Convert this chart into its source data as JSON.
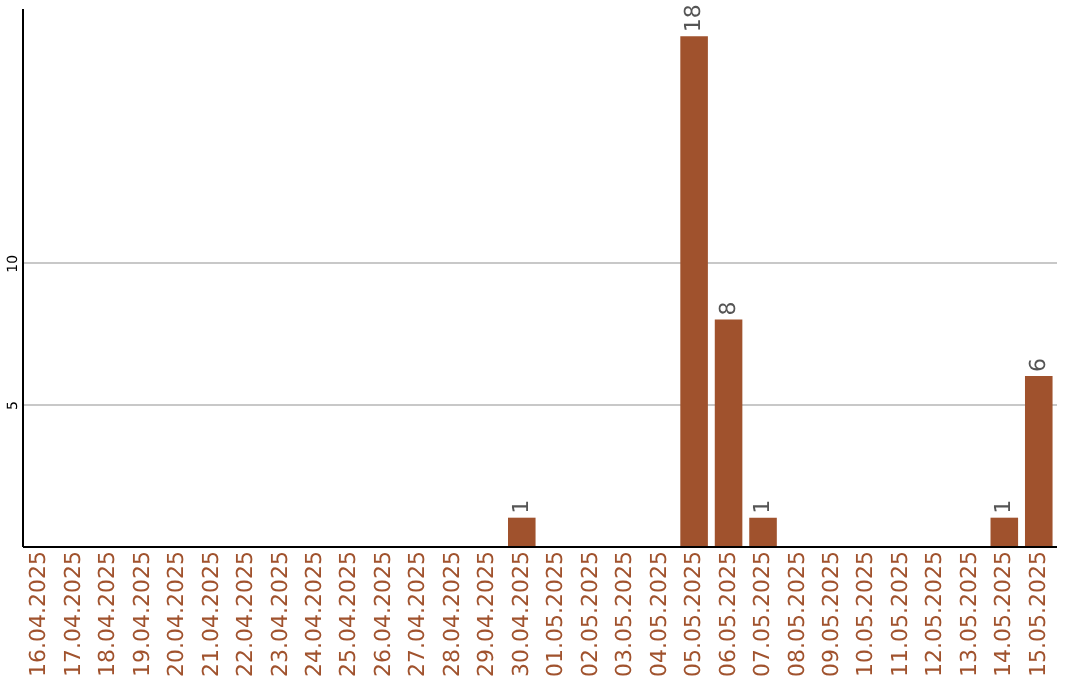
{
  "chart_data": {
    "type": "bar",
    "categories": [
      "16.04.2025",
      "17.04.2025",
      "18.04.2025",
      "19.04.2025",
      "20.04.2025",
      "21.04.2025",
      "22.04.2025",
      "23.04.2025",
      "24.04.2025",
      "25.04.2025",
      "26.04.2025",
      "27.04.2025",
      "28.04.2025",
      "29.04.2025",
      "30.04.2025",
      "01.05.2025",
      "02.05.2025",
      "03.05.2025",
      "04.05.2025",
      "05.05.2025",
      "06.05.2025",
      "07.05.2025",
      "08.05.2025",
      "09.05.2025",
      "10.05.2025",
      "11.05.2025",
      "12.05.2025",
      "13.05.2025",
      "14.05.2025",
      "15.05.2025"
    ],
    "values": [
      0,
      0,
      0,
      0,
      0,
      0,
      0,
      0,
      0,
      0,
      0,
      0,
      0,
      0,
      1,
      0,
      0,
      0,
      0,
      18,
      8,
      1,
      0,
      0,
      0,
      0,
      0,
      0,
      1,
      6
    ],
    "value_labels": [
      null,
      null,
      null,
      null,
      null,
      null,
      null,
      null,
      null,
      null,
      null,
      null,
      null,
      null,
      "1",
      null,
      null,
      null,
      null,
      "18",
      "8",
      "1",
      null,
      null,
      null,
      null,
      null,
      null,
      "1",
      "6"
    ],
    "color": "#a0522d",
    "ylim": [
      0,
      19
    ],
    "yticks": [
      5,
      10
    ],
    "grid": "y"
  }
}
